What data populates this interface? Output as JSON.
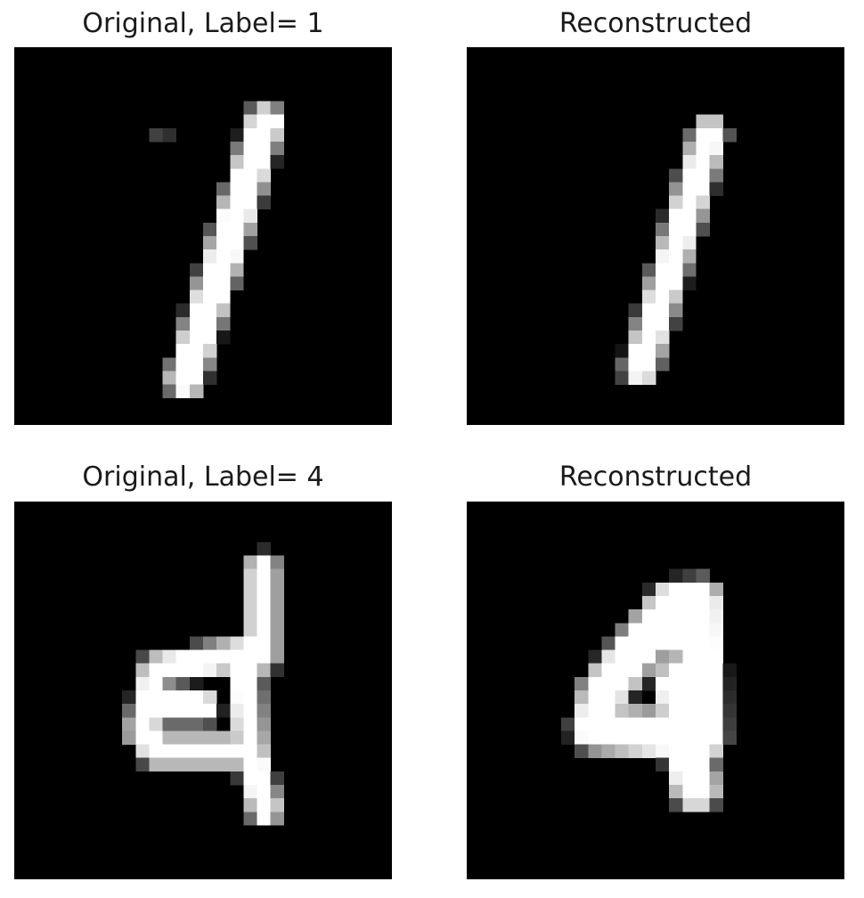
{
  "panels": [
    {
      "title": "Original, Label= 1",
      "digit": "1",
      "kind": "original"
    },
    {
      "title": "Reconstructed",
      "digit": "1",
      "kind": "reconstructed"
    },
    {
      "title": "Original, Label= 4",
      "digit": "4",
      "kind": "original"
    },
    {
      "title": "Reconstructed",
      "digit": "4",
      "kind": "reconstructed"
    }
  ],
  "colors": {
    "background": "#000000",
    "stroke": "#ffffff"
  }
}
